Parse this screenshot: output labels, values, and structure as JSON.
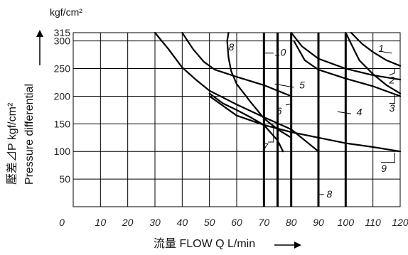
{
  "chart_data": {
    "type": "line",
    "y_unit": "kgf/cm²",
    "ylabel_jp": "壓差⊿P kgf/cm²",
    "ylabel_en": "Pressure differential",
    "xlabel": "流量 FLOW  Q  L/min",
    "xlim": [
      0,
      120
    ],
    "ylim": [
      0,
      315
    ],
    "x_ticks": [
      "0",
      "10",
      "20",
      "30",
      "40",
      "50",
      "60",
      "70",
      "80",
      "90",
      "100",
      "110",
      "120"
    ],
    "y_ticks": [
      "50",
      "100",
      "150",
      "200",
      "250",
      "300",
      "315"
    ],
    "y_tick_values": [
      50,
      100,
      150,
      200,
      250,
      300,
      315
    ],
    "grid": true,
    "series": [
      {
        "name": "1",
        "points": [
          [
            102,
            315
          ],
          [
            106,
            295
          ],
          [
            110,
            280
          ],
          [
            115,
            265
          ],
          [
            120,
            255
          ]
        ]
      },
      {
        "name": "2",
        "points": [
          [
            80,
            315
          ],
          [
            84,
            290
          ],
          [
            90,
            268
          ],
          [
            100,
            250
          ],
          [
            110,
            238
          ],
          [
            120,
            230
          ]
        ]
      },
      {
        "name": "3",
        "points": [
          [
            100,
            315
          ],
          [
            105,
            265
          ],
          [
            110,
            240
          ],
          [
            115,
            220
          ],
          [
            120,
            205
          ]
        ]
      },
      {
        "name": "4",
        "points": [
          [
            81,
            300
          ],
          [
            85,
            265
          ],
          [
            90,
            248
          ],
          [
            100,
            232
          ],
          [
            110,
            218
          ],
          [
            120,
            200
          ]
        ]
      },
      {
        "name": "5",
        "points": [
          [
            40,
            315
          ],
          [
            44,
            285
          ],
          [
            48,
            262
          ],
          [
            52,
            248
          ],
          [
            60,
            235
          ],
          [
            70,
            220
          ],
          [
            80,
            200
          ]
        ]
      },
      {
        "name": "6",
        "points": [
          [
            30,
            315
          ],
          [
            35,
            285
          ],
          [
            40,
            252
          ],
          [
            45,
            230
          ],
          [
            50,
            210
          ],
          [
            60,
            185
          ],
          [
            70,
            162
          ],
          [
            80,
            140
          ],
          [
            90,
            100
          ]
        ]
      },
      {
        "name": "7",
        "points": [
          [
            50,
            205
          ],
          [
            55,
            187
          ],
          [
            60,
            175
          ],
          [
            65,
            162
          ],
          [
            70,
            148
          ],
          [
            75,
            120
          ],
          [
            77,
            100
          ]
        ]
      },
      {
        "name": "8",
        "points": [
          [
            57,
            315
          ],
          [
            56.5,
            300
          ],
          [
            57,
            270
          ],
          [
            58,
            245
          ],
          [
            60,
            222
          ],
          [
            65,
            190
          ],
          [
            70,
            160
          ],
          [
            75,
            140
          ],
          [
            80,
            125
          ]
        ]
      },
      {
        "name": "9",
        "points": [
          [
            50,
            200
          ],
          [
            60,
            165
          ],
          [
            70,
            148
          ],
          [
            80,
            135
          ],
          [
            90,
            125
          ],
          [
            100,
            115
          ],
          [
            110,
            108
          ],
          [
            120,
            100
          ]
        ]
      },
      {
        "name": "10",
        "points": [
          [
            70,
            315
          ],
          [
            70,
            0
          ]
        ]
      }
    ],
    "vertical_limits": [
      70,
      75,
      80,
      90,
      100
    ],
    "annotations": [
      "1",
      "2",
      "3",
      "4",
      "5",
      "6",
      "7",
      "8",
      "8",
      "9",
      "10"
    ]
  }
}
